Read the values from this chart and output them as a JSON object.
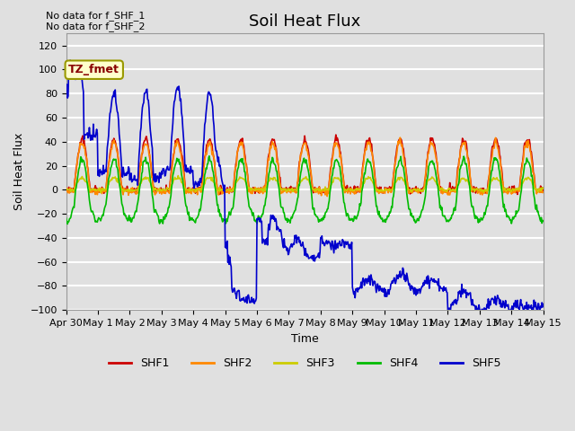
{
  "title": "Soil Heat Flux",
  "xlabel": "Time",
  "ylabel": "Soil Heat Flux",
  "ylim": [
    -100,
    130
  ],
  "yticks": [
    -100,
    -80,
    -60,
    -40,
    -20,
    0,
    20,
    40,
    60,
    80,
    100,
    120
  ],
  "no_data_text": [
    "No data for f_SHF_1",
    "No data for f_SHF_2"
  ],
  "legend_label": "TZ_fmet",
  "colors": {
    "SHF1": "#cc0000",
    "SHF2": "#ff8800",
    "SHF3": "#cccc00",
    "SHF4": "#00bb00",
    "SHF5": "#0000cc"
  },
  "plot_bg_color": "#e0e0e0",
  "grid_color": "#ffffff",
  "legend_entries": [
    "SHF1",
    "SHF2",
    "SHF3",
    "SHF4",
    "SHF5"
  ],
  "legend_colors": [
    "#cc0000",
    "#ff8800",
    "#cccc00",
    "#00bb00",
    "#0000cc"
  ],
  "xtick_labels": [
    "Apr 30",
    "May 1",
    "May 2",
    "May 3",
    "May 4",
    "May 5",
    "May 6",
    "May 7",
    "May 8",
    "May 9",
    "May 10",
    "May 11",
    "May 12",
    "May 13",
    "May 14",
    "May 15"
  ],
  "n_days": 15,
  "title_fontsize": 13,
  "axis_label_fontsize": 9,
  "tick_fontsize": 8
}
